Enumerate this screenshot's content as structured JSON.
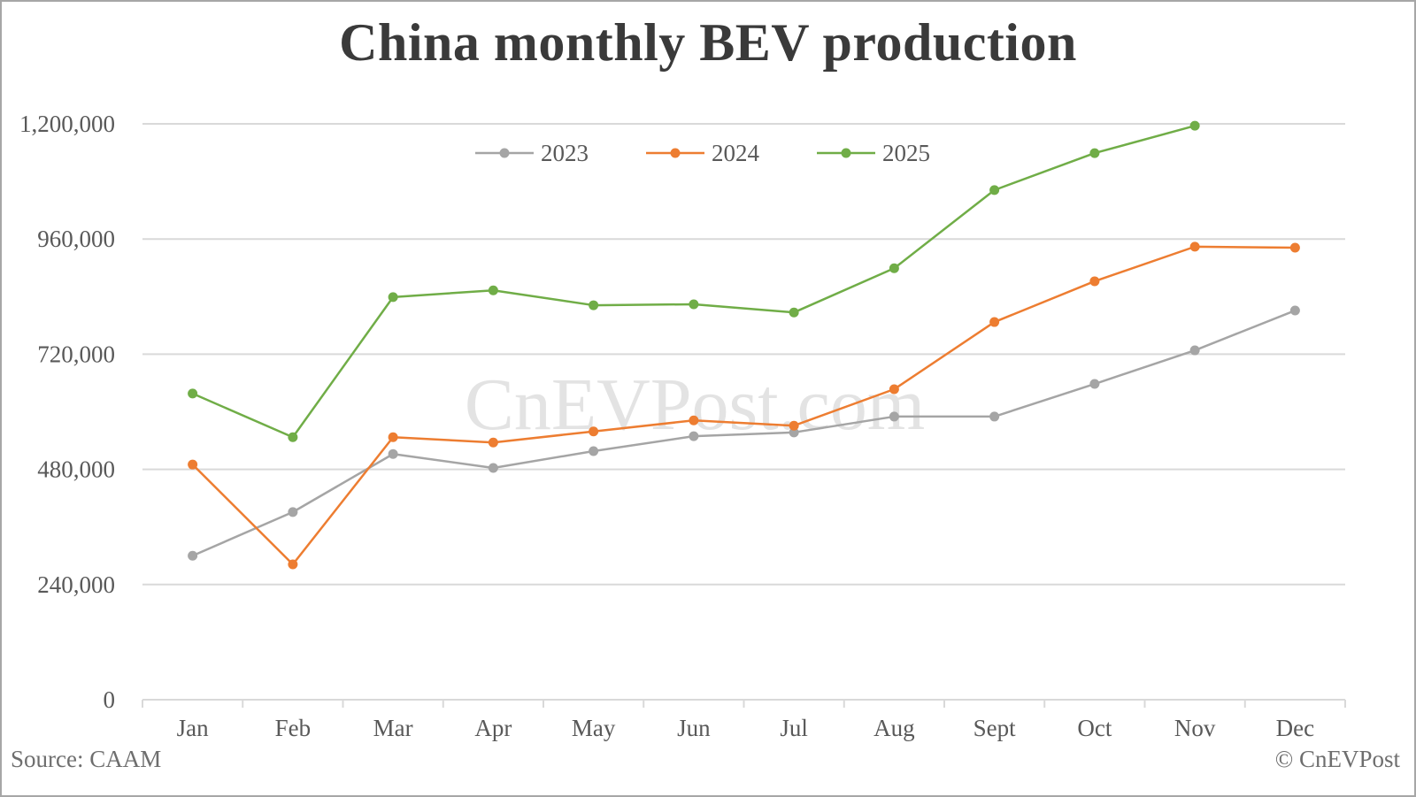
{
  "chart_data": {
    "type": "line",
    "title": "China monthly BEV production",
    "xlabel": "",
    "ylabel": "",
    "categories": [
      "Jan",
      "Feb",
      "Mar",
      "Apr",
      "May",
      "Jun",
      "Jul",
      "Aug",
      "Sept",
      "Oct",
      "Nov",
      "Dec"
    ],
    "yticks": [
      0,
      240000,
      480000,
      720000,
      960000,
      1200000
    ],
    "ytick_labels": [
      "0",
      "240,000",
      "480,000",
      "720,000",
      "960,000",
      "1,200,000"
    ],
    "ylim": [
      0,
      1200000
    ],
    "grid": true,
    "legend_position": "top-inside",
    "series": [
      {
        "name": "2023",
        "color": "#a5a5a5",
        "values": [
          300000,
          391000,
          512000,
          483000,
          518000,
          549000,
          557000,
          590000,
          590000,
          658000,
          728000,
          811000
        ]
      },
      {
        "name": "2024",
        "color": "#ed7d31",
        "values": [
          490000,
          282000,
          547000,
          536000,
          559000,
          582000,
          571000,
          647000,
          787000,
          872000,
          944000,
          942000
        ]
      },
      {
        "name": "2025",
        "color": "#70ad47",
        "values": [
          638000,
          547000,
          839000,
          853000,
          822000,
          824000,
          807000,
          899000,
          1062000,
          1139000,
          1196000,
          null
        ]
      }
    ],
    "watermark": "CnEVPost.com",
    "source": "Source: CAAM",
    "copyright": "© CnEVPost"
  }
}
